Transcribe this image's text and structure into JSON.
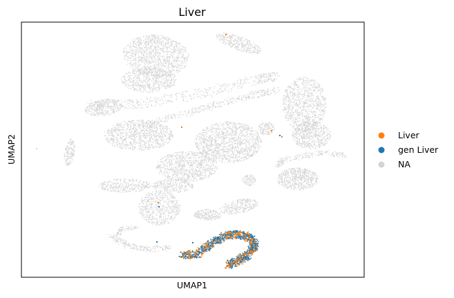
{
  "chart_data": {
    "type": "scatter",
    "title": "Liver",
    "xlabel": "UMAP1",
    "ylabel": "UMAP2",
    "ticks": "none",
    "grid": false,
    "legend_position": "right",
    "series": [
      {
        "name": "Liver",
        "color": "#ff7f0e"
      },
      {
        "name": "gen Liver",
        "color": "#1f77b4"
      },
      {
        "name": "NA",
        "color": "#d3d3d3"
      }
    ]
  }
}
